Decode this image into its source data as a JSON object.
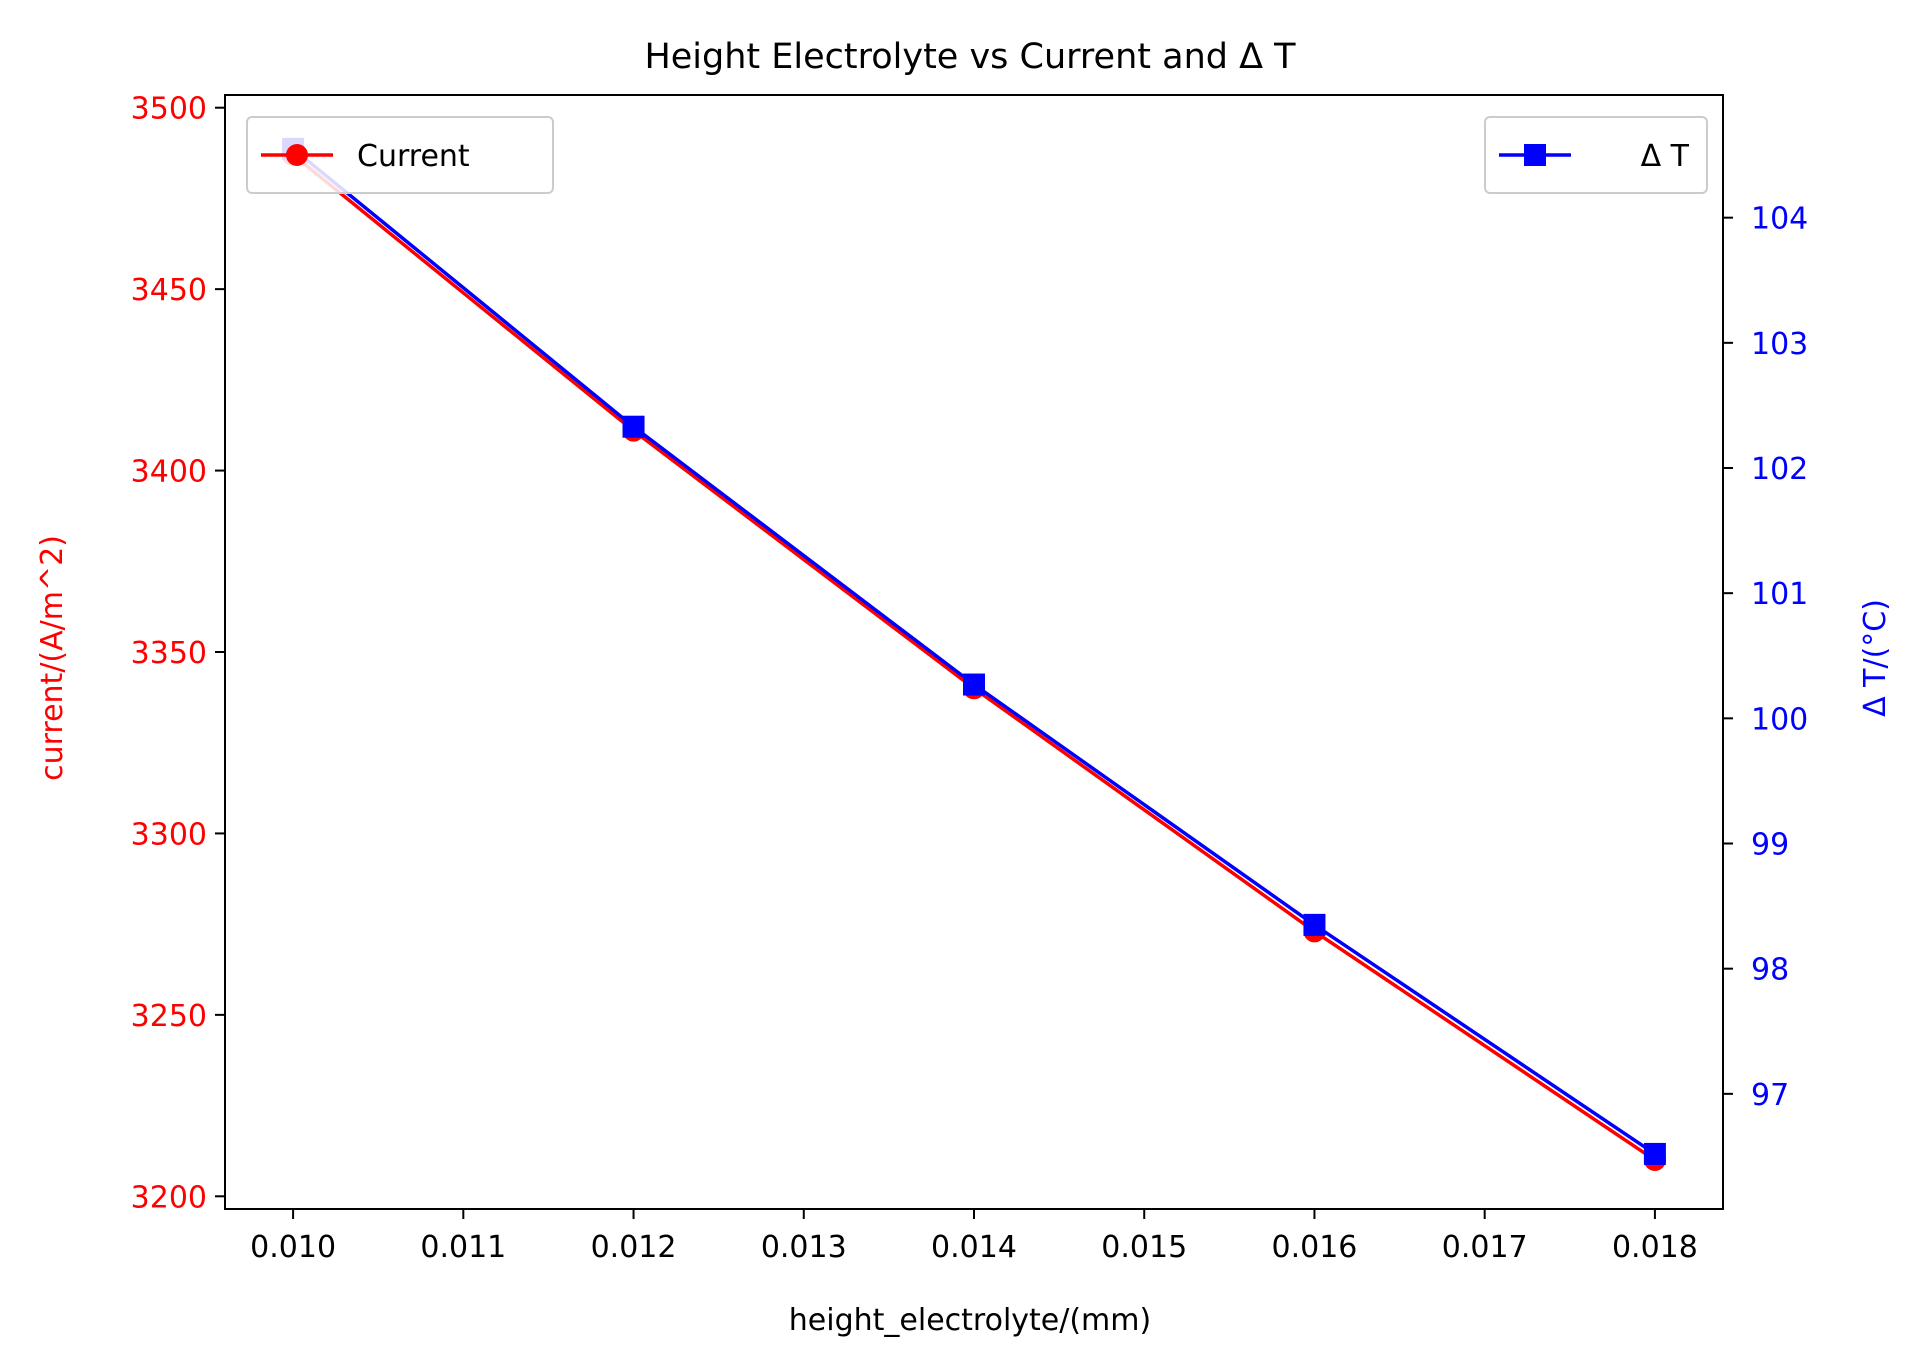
{
  "chart_data": {
    "type": "line",
    "title": "Height Electrolyte vs Current and Δ T",
    "xlabel": "height_electrolyte/(mm)",
    "ylabel_left": "current/(A/m^2)",
    "ylabel_right": "Δ T/(°C)",
    "xlim": [
      0.0096,
      0.0184
    ],
    "ylim_left": [
      3196.5,
      3503.5
    ],
    "ylim_right": [
      96.08,
      104.98
    ],
    "x_ticks": [
      "0.010",
      "0.011",
      "0.012",
      "0.013",
      "0.014",
      "0.015",
      "0.016",
      "0.017",
      "0.018"
    ],
    "y_ticks_left": [
      "3200",
      "3250",
      "3300",
      "3350",
      "3400",
      "3450",
      "3500"
    ],
    "y_ticks_right": [
      "97",
      "98",
      "99",
      "100",
      "101",
      "102",
      "103",
      "104"
    ],
    "grid": false,
    "series": [
      {
        "name": "Current",
        "axis": "left",
        "color": "#ff0000",
        "marker": "circle",
        "x": [
          0.01,
          0.012,
          0.014,
          0.016,
          0.018
        ],
        "values": [
          3487,
          3411,
          3340,
          3273,
          3210
        ]
      },
      {
        "name": "Δ T",
        "axis": "right",
        "color": "#0000ff",
        "marker": "square",
        "x": [
          0.01,
          0.012,
          0.014,
          0.016,
          0.018
        ],
        "values": [
          104.55,
          102.33,
          100.27,
          98.35,
          96.52
        ]
      }
    ],
    "legends": [
      {
        "series": "Current",
        "placement": "upper-left"
      },
      {
        "series": "Δ T",
        "placement": "upper-right"
      }
    ]
  }
}
